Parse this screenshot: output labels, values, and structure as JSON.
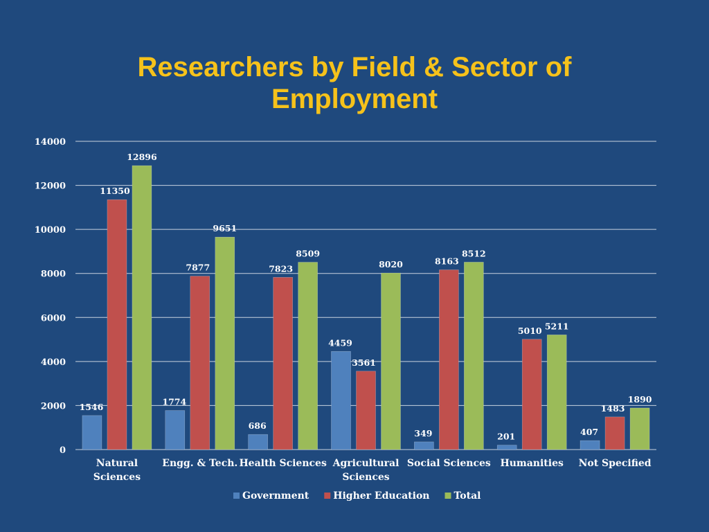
{
  "slide": {
    "title_line1": "Researchers by Field & Sector of",
    "title_line2": "Employment"
  },
  "colors": {
    "background": "#1f497d",
    "title": "#f6c21b",
    "text": "#ffffff",
    "gridline": "#c9d3e0"
  },
  "chart_data": {
    "type": "bar",
    "title": "Researchers by Field & Sector of Employment",
    "xlabel": "",
    "ylabel": "",
    "ylim": [
      0,
      14000
    ],
    "yticks": [
      0,
      2000,
      4000,
      6000,
      8000,
      10000,
      12000,
      14000
    ],
    "grid": true,
    "legend_position": "bottom",
    "categories": [
      "Natural Sciences",
      "Engg. & Tech.",
      "Health Sciences",
      "Agricultural Sciences",
      "Social Sciences",
      "Humanities",
      "Not Specified"
    ],
    "category_labels": [
      [
        "Natural",
        "Sciences"
      ],
      [
        "Engg. & Tech."
      ],
      [
        "Health Sciences"
      ],
      [
        "Agricultural",
        "Sciences"
      ],
      [
        "Social Sciences"
      ],
      [
        "Humanities"
      ],
      [
        "Not Specified"
      ]
    ],
    "series": [
      {
        "name": "Government",
        "color": "#4f81bd",
        "values": [
          1546,
          1774,
          686,
          4459,
          349,
          201,
          407
        ]
      },
      {
        "name": "Higher Education",
        "color": "#c0504d",
        "values": [
          11350,
          7877,
          7823,
          3561,
          8163,
          5010,
          1483
        ]
      },
      {
        "name": "Total",
        "color": "#9bbb59",
        "values": [
          12896,
          9651,
          8509,
          8020,
          8512,
          5211,
          1890
        ]
      }
    ]
  }
}
